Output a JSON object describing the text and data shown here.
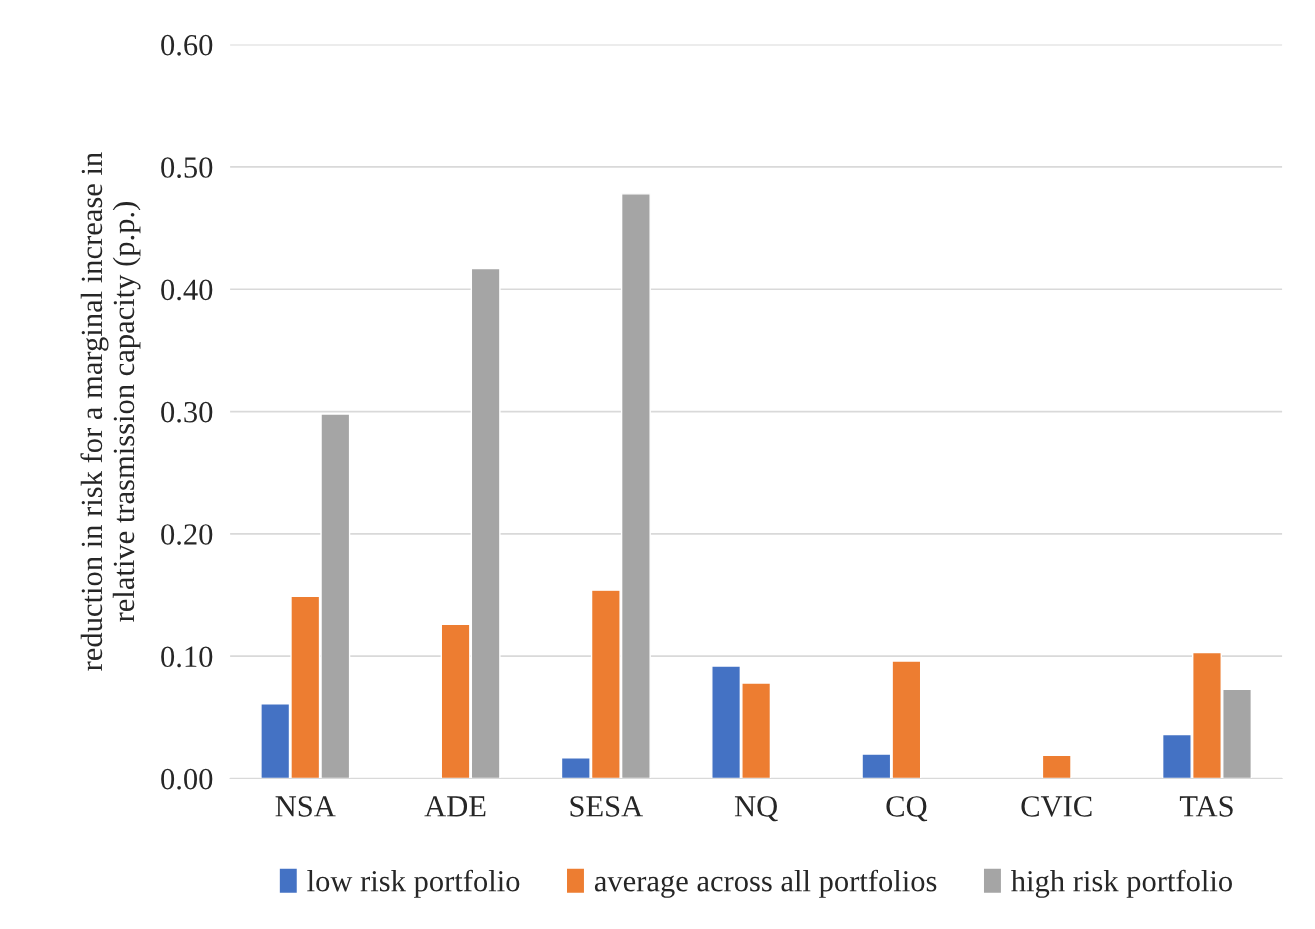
{
  "chart_data": {
    "type": "bar",
    "ylabel": "reduction in risk for a marginal increase in\nrelative trasmission capacity (p.p.)",
    "categories": [
      "NSA",
      "ADE",
      "SESA",
      "NQ",
      "CQ",
      "CVIC",
      "TAS"
    ],
    "series": [
      {
        "name": "low risk portfolio",
        "color": "#4472c4",
        "values": [
          0.061,
          null,
          0.017,
          0.092,
          0.02,
          null,
          0.036
        ]
      },
      {
        "name": "average across all portfolios",
        "color": "#ed7d31",
        "values": [
          0.149,
          0.126,
          0.154,
          0.078,
          0.096,
          0.019,
          0.103
        ]
      },
      {
        "name": "high risk portfolio",
        "color": "#a5a5a5",
        "values": [
          0.298,
          0.417,
          0.478,
          null,
          null,
          null,
          0.073
        ]
      }
    ],
    "ylim": [
      0,
      0.6
    ],
    "yticks": [
      {
        "value": 0,
        "label": "0.00"
      },
      {
        "value": 0.1,
        "label": "0.10"
      },
      {
        "value": 0.2,
        "label": "0.20"
      },
      {
        "value": 0.3,
        "label": "0.30"
      },
      {
        "value": 0.4,
        "label": "0.40"
      },
      {
        "value": 0.5,
        "label": "0.50"
      },
      {
        "value": 0.6,
        "label": "0.60"
      }
    ],
    "grid": "y",
    "legend": "bottom"
  }
}
